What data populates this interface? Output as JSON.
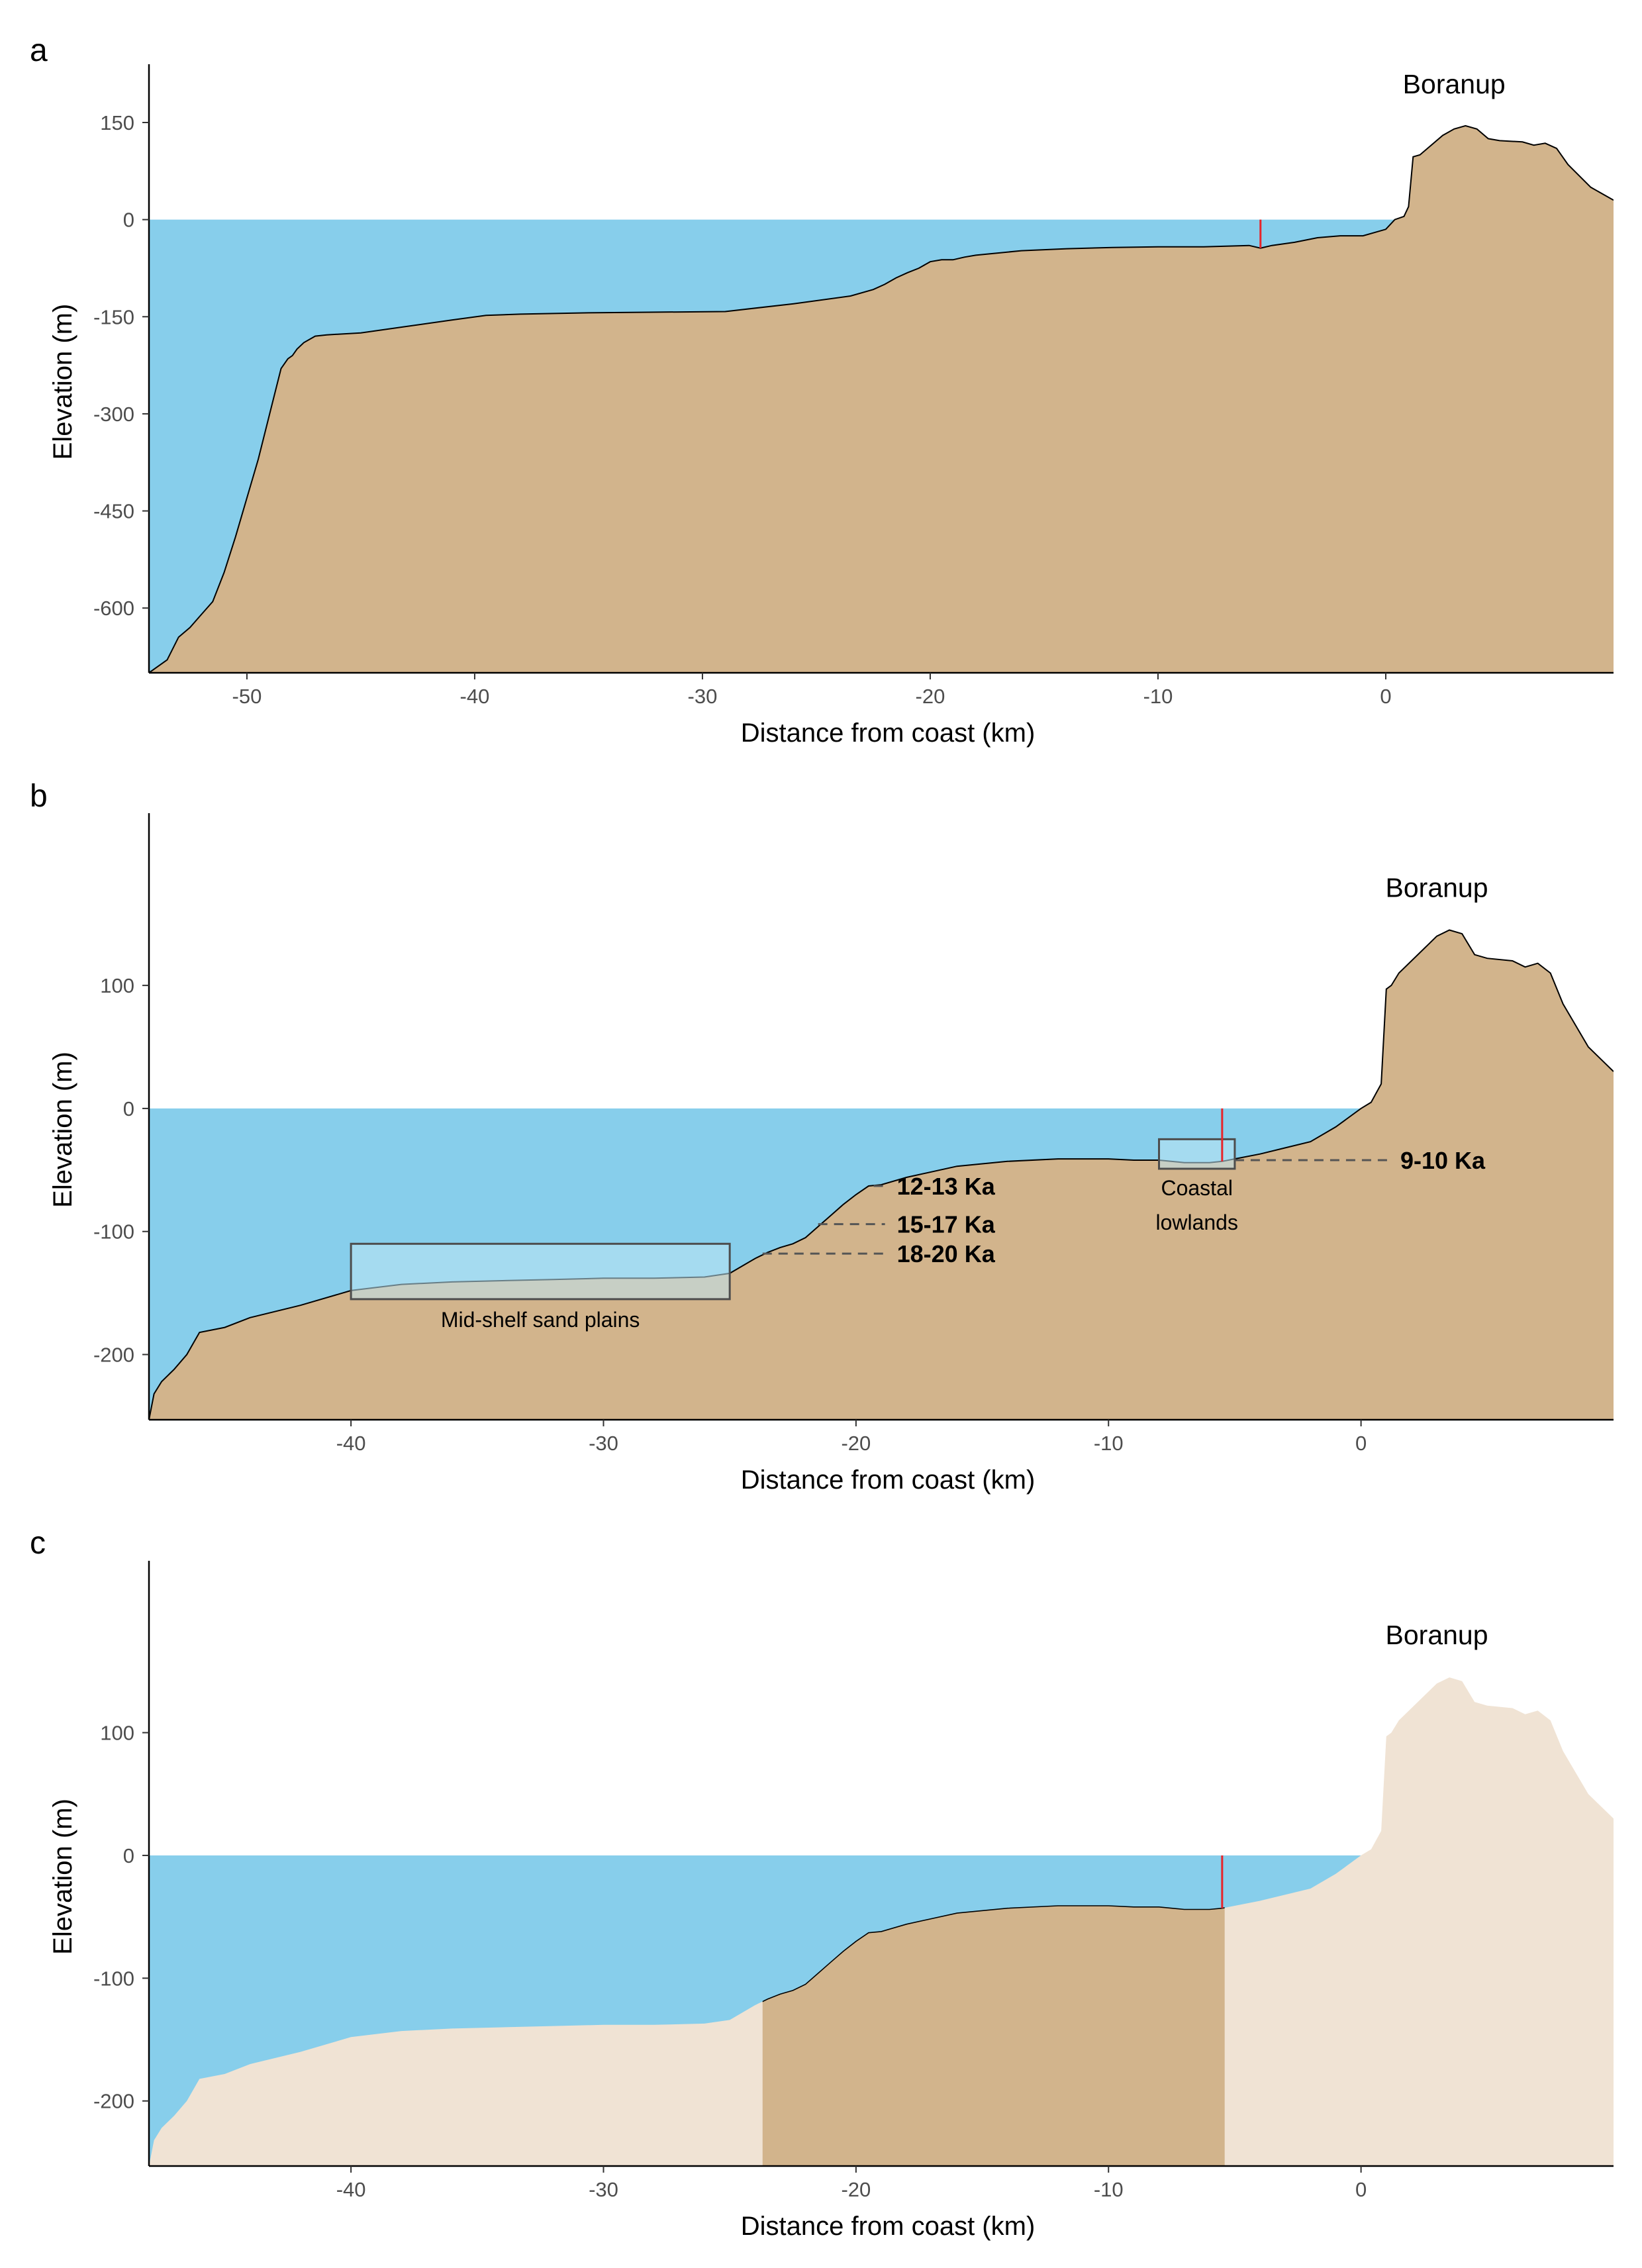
{
  "colors": {
    "sea": "#87CEEB",
    "land": "#D2B48C",
    "land_faded": "#F0E3D4",
    "marker": "#E8242A",
    "outline": "#000000",
    "dashes": "#555555",
    "box_fill": "#BDE6F4"
  },
  "chart_data": [
    {
      "panel": "a",
      "type": "area",
      "title": "",
      "xlabel": "Distance from coast (km)",
      "ylabel": "Elevation (m)",
      "xlim": [
        -54.3,
        10
      ],
      "ylim": [
        -700,
        240
      ],
      "xticks": [
        -50,
        -40,
        -30,
        -20,
        -10,
        0
      ],
      "yticks": [
        150,
        0,
        -150,
        -300,
        -450,
        -600
      ],
      "sea_level": 0,
      "place_label": "Boranup",
      "place_label_at": [
        3,
        195
      ],
      "marker_x": -5.5,
      "profile": {
        "x": [
          -54.3,
          -53.5,
          -53,
          -52.5,
          -52,
          -51.5,
          -51,
          -50.5,
          -50,
          -49.5,
          -49,
          -48.5,
          -48.2,
          -48,
          -47.8,
          -47.5,
          -47,
          -46.5,
          -45,
          -43,
          -41,
          -39.5,
          -38,
          -35,
          -32,
          -29,
          -26,
          -23.5,
          -22.5,
          -22,
          -21.5,
          -21,
          -20.5,
          -20,
          -19.5,
          -19,
          -18.5,
          -18,
          -16,
          -14,
          -12,
          -10,
          -8,
          -6,
          -5.5,
          -5,
          -4,
          -3,
          -2,
          -1,
          0,
          0.4,
          0.8,
          1,
          1.2,
          1.5,
          2.5,
          3,
          3.5,
          4,
          4.5,
          5,
          6,
          6.5,
          7,
          7.5,
          8,
          9,
          10
        ],
        "y": [
          -700,
          -680,
          -645,
          -630,
          -610,
          -590,
          -545,
          -490,
          -430,
          -370,
          -300,
          -230,
          -215,
          -210,
          -200,
          -190,
          -180,
          -178,
          -175,
          -165,
          -155,
          -148,
          -146,
          -144,
          -143,
          -142,
          -130,
          -118,
          -108,
          -100,
          -90,
          -82,
          -75,
          -65,
          -62,
          -62,
          -58,
          -55,
          -48,
          -45,
          -43,
          -42,
          -42,
          -40,
          -44,
          -40,
          -35,
          -28,
          -25,
          -25,
          -15,
          0,
          5,
          20,
          97,
          100,
          130,
          140,
          145,
          140,
          125,
          122,
          120,
          115,
          118,
          110,
          85,
          50,
          30
        ]
      }
    },
    {
      "panel": "b",
      "type": "area",
      "title": "",
      "xlabel": "Distance from coast (km)",
      "ylabel": "Elevation (m)",
      "xlim": [
        -48,
        10
      ],
      "ylim": [
        -253,
        240
      ],
      "xticks": [
        -40,
        -30,
        -20,
        -10,
        0
      ],
      "yticks": [
        100,
        0,
        -100,
        -200
      ],
      "sea_level": 0,
      "place_label": "Boranup",
      "place_label_at": [
        3,
        172
      ],
      "marker_x": -5.5,
      "profile": {
        "x": [
          -48,
          -47.8,
          -47.5,
          -47,
          -46.5,
          -46,
          -45,
          -44,
          -42,
          -40,
          -38,
          -36,
          -34,
          -32,
          -30,
          -28,
          -26,
          -25,
          -24,
          -23.5,
          -23,
          -22.5,
          -22,
          -21.5,
          -21,
          -20.5,
          -20,
          -19.5,
          -19,
          -18,
          -16,
          -14,
          -12,
          -10,
          -9,
          -8,
          -7,
          -6,
          -5.5,
          -5,
          -4,
          -3,
          -2,
          -1,
          0,
          0.4,
          0.8,
          1,
          1.2,
          1.5,
          2.5,
          3,
          3.5,
          4,
          4.5,
          5,
          6,
          6.5,
          7,
          7.5,
          8,
          9,
          10
        ],
        "y": [
          -253,
          -232,
          -222,
          -212,
          -200,
          -182,
          -178,
          -170,
          -160,
          -148,
          -143,
          -141,
          -140,
          -139,
          -138,
          -138,
          -137,
          -134,
          -122,
          -117,
          -113,
          -110,
          -105,
          -96,
          -87,
          -78,
          -70,
          -63,
          -62,
          -56,
          -47,
          -43,
          -41,
          -41,
          -42,
          -42,
          -44,
          -44,
          -43,
          -41,
          -37,
          -32,
          -27,
          -15,
          0,
          5,
          20,
          97,
          100,
          110,
          130,
          140,
          145,
          142,
          125,
          122,
          120,
          115,
          118,
          110,
          85,
          50,
          30
        ]
      },
      "boxes": [
        {
          "label": "Mid-shelf sand plains",
          "x0": -40,
          "x1": -25,
          "y0": -155,
          "y1": -110
        },
        {
          "label": "Coastal lowlands",
          "label_lines": [
            "Coastal",
            "lowlands"
          ],
          "x0": -8,
          "x1": -5,
          "y0": -49,
          "y1": -25
        }
      ],
      "age_markers": [
        {
          "label": "12-13 Ka",
          "from_x": -19.3,
          "y": -63
        },
        {
          "label": "15-17 Ka",
          "from_x": -21.5,
          "y": -94
        },
        {
          "label": "18-20 Ka",
          "from_x": -23.7,
          "y": -118
        },
        {
          "label": "9-10 Ka",
          "from_x": -5,
          "y": -42
        }
      ]
    },
    {
      "panel": "c",
      "type": "area",
      "title": "",
      "xlabel": "Distance from coast (km)",
      "ylabel": "Elevation (m)",
      "xlim": [
        -48,
        10
      ],
      "ylim": [
        -253,
        240
      ],
      "xticks": [
        -40,
        -30,
        -20,
        -10,
        0
      ],
      "yticks": [
        100,
        0,
        -100,
        -200
      ],
      "sea_level": 0,
      "place_label": "Boranup",
      "place_label_at": [
        3,
        172
      ],
      "marker_x": -5.5,
      "highlight_range": [
        -23.7,
        -5.4
      ],
      "profile": {
        "x": [
          -48,
          -47.8,
          -47.5,
          -47,
          -46.5,
          -46,
          -45,
          -44,
          -42,
          -40,
          -38,
          -36,
          -34,
          -32,
          -30,
          -28,
          -26,
          -25,
          -24,
          -23.5,
          -23,
          -22.5,
          -22,
          -21.5,
          -21,
          -20.5,
          -20,
          -19.5,
          -19,
          -18,
          -16,
          -14,
          -12,
          -10,
          -9,
          -8,
          -7,
          -6,
          -5.5,
          -5,
          -4,
          -3,
          -2,
          -1,
          0,
          0.4,
          0.8,
          1,
          1.2,
          1.5,
          2.5,
          3,
          3.5,
          4,
          4.5,
          5,
          6,
          6.5,
          7,
          7.5,
          8,
          9,
          10
        ],
        "y": [
          -253,
          -232,
          -222,
          -212,
          -200,
          -182,
          -178,
          -170,
          -160,
          -148,
          -143,
          -141,
          -140,
          -139,
          -138,
          -138,
          -137,
          -134,
          -122,
          -117,
          -113,
          -110,
          -105,
          -96,
          -87,
          -78,
          -70,
          -63,
          -62,
          -56,
          -47,
          -43,
          -41,
          -41,
          -42,
          -42,
          -44,
          -44,
          -43,
          -41,
          -37,
          -32,
          -27,
          -15,
          0,
          5,
          20,
          97,
          100,
          110,
          130,
          140,
          145,
          142,
          125,
          122,
          120,
          115,
          118,
          110,
          85,
          50,
          30
        ]
      }
    }
  ]
}
